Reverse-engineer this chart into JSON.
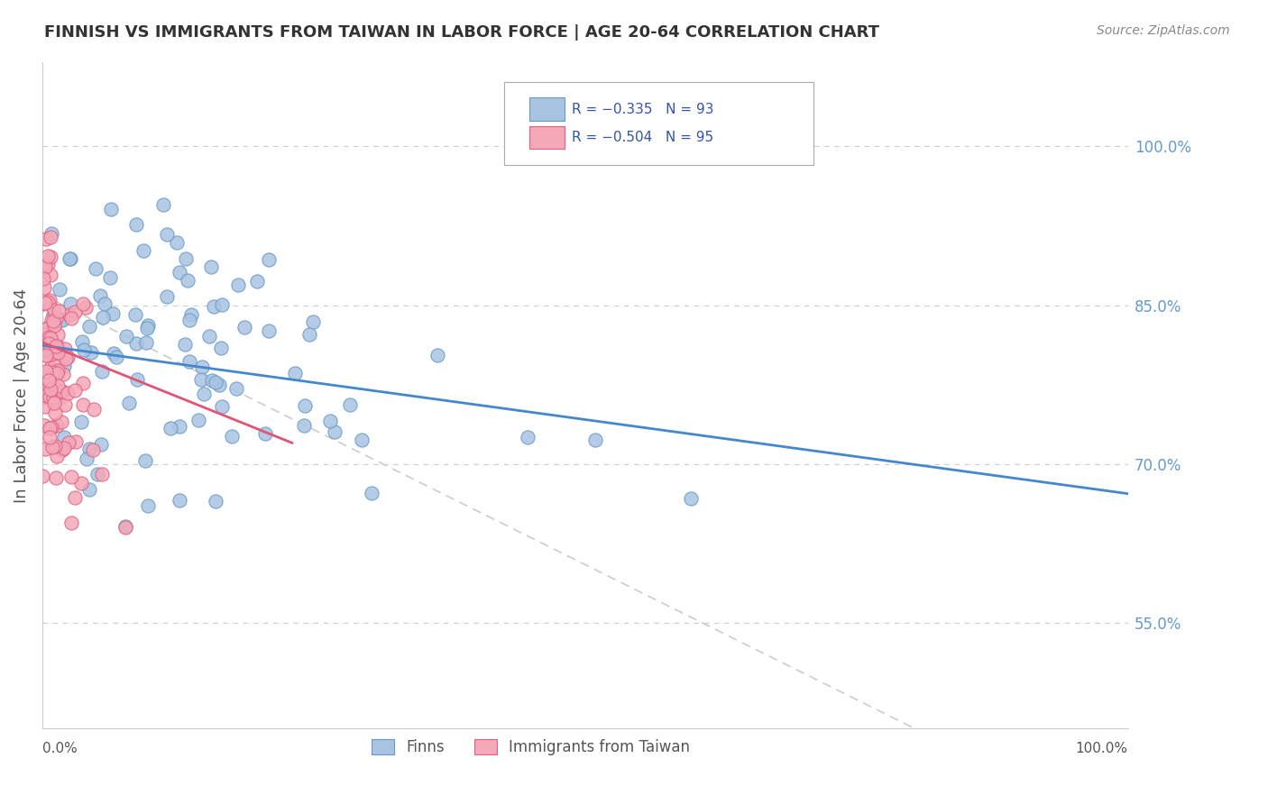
{
  "title": "FINNISH VS IMMIGRANTS FROM TAIWAN IN LABOR FORCE | AGE 20-64 CORRELATION CHART",
  "source": "Source: ZipAtlas.com",
  "ylabel": "In Labor Force | Age 20-64",
  "right_ytick_labels": [
    "100.0%",
    "85.0%",
    "70.0%",
    "55.0%"
  ],
  "right_ytick_values": [
    1.0,
    0.85,
    0.7,
    0.55
  ],
  "finns_color": "#a8c4e0",
  "taiwan_color": "#f4a8b8",
  "finns_edge": "#6699cc",
  "taiwan_edge": "#e06080",
  "trend_blue": "#4488cc",
  "trend_pink": "#e05575",
  "diag_color": "#cccccc",
  "background": "#ffffff",
  "grid_color": "#cccccc",
  "title_color": "#333333",
  "right_label_color": "#6699cc",
  "R_finns": -0.335,
  "N_finns": 93,
  "R_taiwan": -0.504,
  "N_taiwan": 95,
  "seed": 42
}
